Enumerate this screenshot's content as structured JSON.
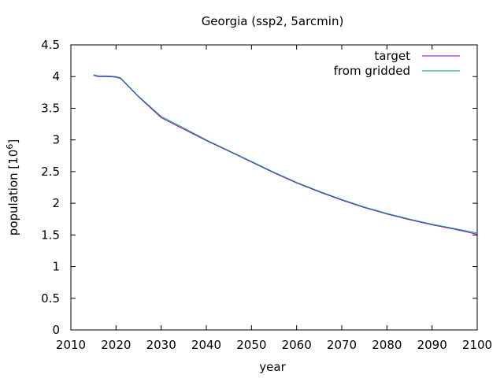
{
  "chart_data": {
    "type": "line",
    "title": "Georgia (ssp2, 5arcmin)",
    "xlabel": "year",
    "ylabel_main": "population [10",
    "ylabel_exp": "6",
    "ylabel_close": "]",
    "xlim": [
      2010,
      2100
    ],
    "ylim": [
      0,
      4.5
    ],
    "xticks": [
      2010,
      2020,
      2030,
      2040,
      2050,
      2060,
      2070,
      2080,
      2090,
      2100
    ],
    "xtick_labels": [
      "2010",
      "2020",
      "2030",
      "2040",
      "2050",
      "2060",
      "2070",
      "2080",
      "2090",
      "2100"
    ],
    "yticks": [
      0,
      0.5,
      1,
      1.5,
      2,
      2.5,
      3,
      3.5,
      4,
      4.5
    ],
    "ytick_labels": [
      "0",
      "0.5",
      "1",
      "1.5",
      "2",
      "2.5",
      "3",
      "3.5",
      "4",
      "4.5"
    ],
    "legend_position": "top-right",
    "grid": false,
    "series": [
      {
        "name": "target",
        "color": "#9400d3",
        "x": [
          2015,
          2016,
          2018,
          2020,
          2021,
          2025,
          2030,
          2035,
          2040,
          2045,
          2050,
          2055,
          2060,
          2065,
          2070,
          2075,
          2080,
          2085,
          2090,
          2095,
          2100
        ],
        "y": [
          4.02,
          4.0,
          4.0,
          3.99,
          3.97,
          3.68,
          3.35,
          3.17,
          2.99,
          2.82,
          2.65,
          2.48,
          2.32,
          2.18,
          2.05,
          1.93,
          1.83,
          1.74,
          1.66,
          1.59,
          1.51
        ]
      },
      {
        "name": "from gridded",
        "color": "#009e73",
        "x": [
          2015,
          2016,
          2018,
          2020,
          2021,
          2025,
          2030,
          2035,
          2040,
          2045,
          2050,
          2055,
          2060,
          2065,
          2070,
          2075,
          2080,
          2085,
          2090,
          2095,
          2100
        ],
        "y": [
          4.03,
          4.01,
          4.01,
          4.0,
          3.98,
          3.69,
          3.37,
          3.19,
          3.0,
          2.83,
          2.66,
          2.49,
          2.33,
          2.19,
          2.06,
          1.94,
          1.84,
          1.75,
          1.67,
          1.6,
          1.53
        ]
      }
    ]
  }
}
